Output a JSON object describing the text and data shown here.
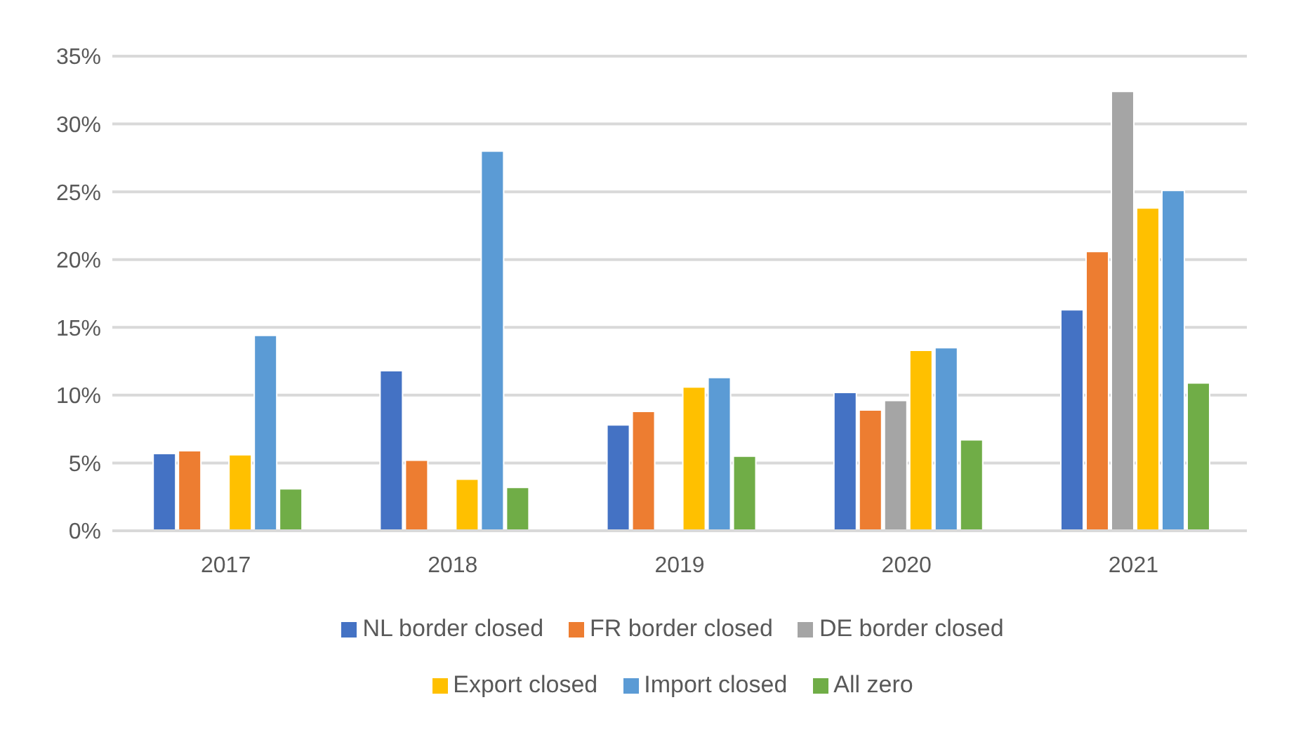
{
  "chart_data": {
    "type": "bar",
    "categories": [
      "2017",
      "2018",
      "2019",
      "2020",
      "2021"
    ],
    "series": [
      {
        "name": "NL border closed",
        "color": "#4472c4",
        "values": [
          5.7,
          11.8,
          7.8,
          10.2,
          16.3
        ]
      },
      {
        "name": "FR border closed",
        "color": "#ed7d31",
        "values": [
          5.9,
          5.2,
          8.8,
          8.9,
          20.6
        ]
      },
      {
        "name": "DE border closed",
        "color": "#a5a5a5",
        "values": [
          null,
          null,
          null,
          9.6,
          32.4
        ]
      },
      {
        "name": "Export closed",
        "color": "#ffc000",
        "values": [
          5.6,
          3.8,
          10.6,
          13.3,
          23.8
        ]
      },
      {
        "name": "Import closed",
        "color": "#5b9bd5",
        "values": [
          14.4,
          28.0,
          11.3,
          13.5,
          25.1
        ]
      },
      {
        "name": "All zero",
        "color": "#70ad47",
        "values": [
          3.1,
          3.2,
          5.5,
          6.7,
          10.9
        ]
      }
    ],
    "ylim": [
      0,
      35
    ],
    "yticks": [
      {
        "value": 0,
        "label": "0%"
      },
      {
        "value": 5,
        "label": "5%"
      },
      {
        "value": 10,
        "label": "10%"
      },
      {
        "value": 15,
        "label": "15%"
      },
      {
        "value": 20,
        "label": "20%"
      },
      {
        "value": 25,
        "label": "25%"
      },
      {
        "value": 30,
        "label": "30%"
      },
      {
        "value": 35,
        "label": "35%"
      }
    ],
    "grid": "y",
    "legend": "bottom"
  }
}
